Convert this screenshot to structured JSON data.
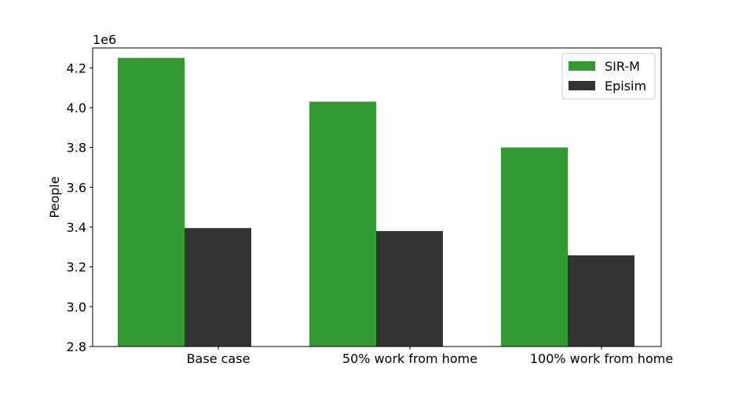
{
  "chart_data": {
    "type": "bar",
    "categories": [
      "Base case",
      "50% work from home",
      "100% work from home"
    ],
    "series": [
      {
        "name": "SIR-M",
        "values": [
          4250000,
          4030000,
          3800000
        ],
        "color": "#339933"
      },
      {
        "name": "Episim",
        "values": [
          3395000,
          3380000,
          3258000
        ],
        "color": "#333333"
      }
    ],
    "xlabel": "",
    "ylabel": "People",
    "offset_text": "1e6",
    "ylim": [
      2800000,
      4300000
    ],
    "yticks": [
      2800000,
      3000000,
      3200000,
      3400000,
      3600000,
      3800000,
      4000000,
      4200000
    ],
    "ytick_labels": [
      "2.8",
      "3.0",
      "3.2",
      "3.4",
      "3.6",
      "3.8",
      "4.0",
      "4.2"
    ],
    "legend_position": "top-right",
    "grid": false
  }
}
